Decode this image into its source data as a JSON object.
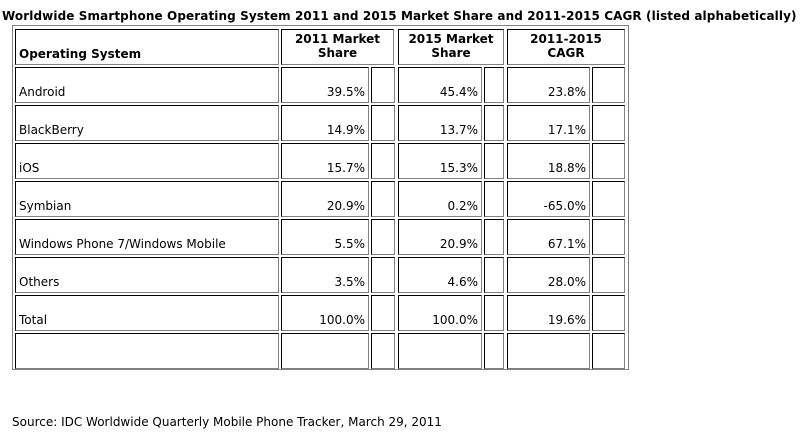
{
  "title": "Worldwide Smartphone Operating System 2011 and 2015 Market Share and 2011-2015 CAGR (listed alphabetically)",
  "headers": {
    "os": "Operating System",
    "share2011_l1": "2011 Market",
    "share2011_l2": "Share",
    "share2015_l1": "2015 Market",
    "share2015_l2": "Share",
    "cagr_l1": "2011-2015",
    "cagr_l2": "CAGR"
  },
  "rows": [
    {
      "os": "Android",
      "share2011": "39.5%",
      "share2015": "45.4%",
      "cagr": "23.8%"
    },
    {
      "os": "BlackBerry",
      "share2011": "14.9%",
      "share2015": "13.7%",
      "cagr": "17.1%"
    },
    {
      "os": "iOS",
      "share2011": "15.7%",
      "share2015": "15.3%",
      "cagr": "18.8%"
    },
    {
      "os": "Symbian",
      "share2011": "20.9%",
      "share2015": "0.2%",
      "cagr": "-65.0%"
    },
    {
      "os": "Windows Phone 7/Windows Mobile",
      "share2011": "5.5%",
      "share2015": "20.9%",
      "cagr": "67.1%"
    },
    {
      "os": "Others",
      "share2011": "3.5%",
      "share2015": "4.6%",
      "cagr": "28.0%"
    },
    {
      "os": "Total",
      "share2011": "100.0%",
      "share2015": "100.0%",
      "cagr": "19.6%"
    }
  ],
  "source": "Source: IDC Worldwide Quarterly Mobile Phone Tracker, March 29, 2011"
}
